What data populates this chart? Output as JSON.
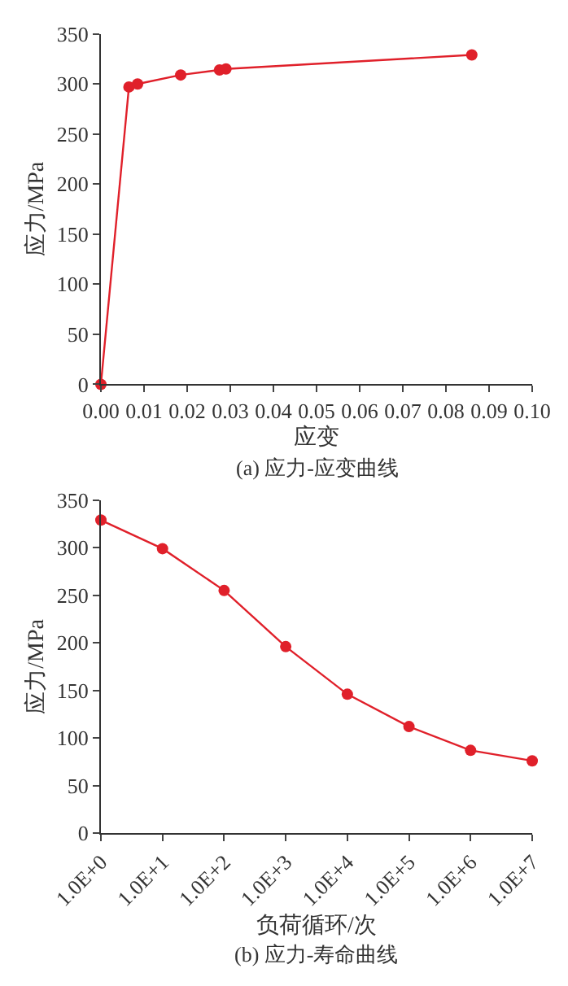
{
  "chart_data": [
    {
      "type": "line",
      "title": "(a) 应力-应变曲线",
      "xlabel": "应变",
      "ylabel": "应力/MPa",
      "x": [
        0,
        0.0065,
        0.0085,
        0.0185,
        0.0275,
        0.029,
        0.086
      ],
      "series": [
        {
          "color": "#e0202a",
          "values": [
            0,
            297,
            300,
            309,
            314,
            315,
            329
          ]
        }
      ],
      "xlim": [
        0,
        0.1
      ],
      "xticks": [
        {
          "value": 0,
          "label": "0.00"
        },
        {
          "value": 0.01,
          "label": "0.01"
        },
        {
          "value": 0.02,
          "label": "0.02"
        },
        {
          "value": 0.03,
          "label": "0.03"
        },
        {
          "value": 0.04,
          "label": "0.04"
        },
        {
          "value": 0.05,
          "label": "0.05"
        },
        {
          "value": 0.06,
          "label": "0.06"
        },
        {
          "value": 0.07,
          "label": "0.07"
        },
        {
          "value": 0.08,
          "label": "0.08"
        },
        {
          "value": 0.09,
          "label": "0.09"
        },
        {
          "value": 0.1,
          "label": "0.10"
        }
      ],
      "ylim": [
        0,
        350
      ],
      "yticks": [
        0,
        50,
        100,
        150,
        200,
        250,
        300,
        350
      ],
      "marker": "circle",
      "line_style": "solid"
    },
    {
      "type": "line",
      "title": "(b) 应力-寿命曲线",
      "xlabel": "负荷循环/次",
      "ylabel": "应力/MPa",
      "x": [
        1,
        10,
        100,
        1000,
        10000,
        100000,
        1000000,
        10000000
      ],
      "series": [
        {
          "color": "#e0202a",
          "values": [
            329,
            299,
            255,
            196,
            146,
            112,
            87,
            76
          ]
        }
      ],
      "log": "x",
      "xlim": [
        1,
        10000000
      ],
      "xticks": [
        {
          "value": 1,
          "label": "1.0E+0"
        },
        {
          "value": 10,
          "label": "1.0E+1"
        },
        {
          "value": 100,
          "label": "1.0E+2"
        },
        {
          "value": 1000,
          "label": "1.0E+3"
        },
        {
          "value": 10000,
          "label": "1.0E+4"
        },
        {
          "value": 100000,
          "label": "1.0E+5"
        },
        {
          "value": 1000000,
          "label": "1.0E+6"
        },
        {
          "value": 10000000,
          "label": "1.0E+7"
        }
      ],
      "ylim": [
        0,
        350
      ],
      "yticks": [
        0,
        50,
        100,
        150,
        200,
        250,
        300,
        350
      ],
      "marker": "circle",
      "line_style": "solid"
    }
  ]
}
